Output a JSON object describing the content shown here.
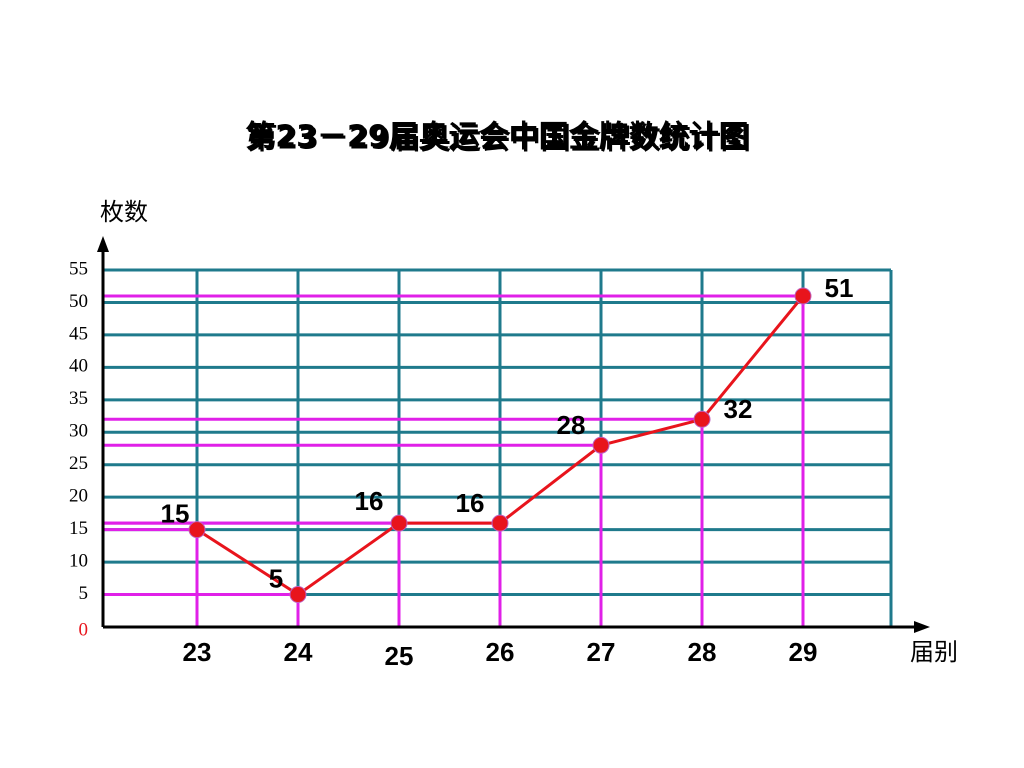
{
  "chart_data": {
    "type": "line",
    "title": "第23－29届奥运会中国金牌数统计图",
    "y_label": "枚数",
    "x_label": "届别",
    "categories": [
      "23",
      "24",
      "25",
      "26",
      "27",
      "28",
      "29"
    ],
    "values": [
      15,
      5,
      16,
      16,
      28,
      32,
      51
    ],
    "color": "#e8141c",
    "grid_color": "#1f7a8c",
    "drop_line_color": "#e020e8",
    "ylim": [
      0,
      55
    ],
    "yticks": [
      0,
      5,
      10,
      15,
      20,
      25,
      30,
      35,
      40,
      45,
      50,
      55
    ],
    "grid": true
  }
}
